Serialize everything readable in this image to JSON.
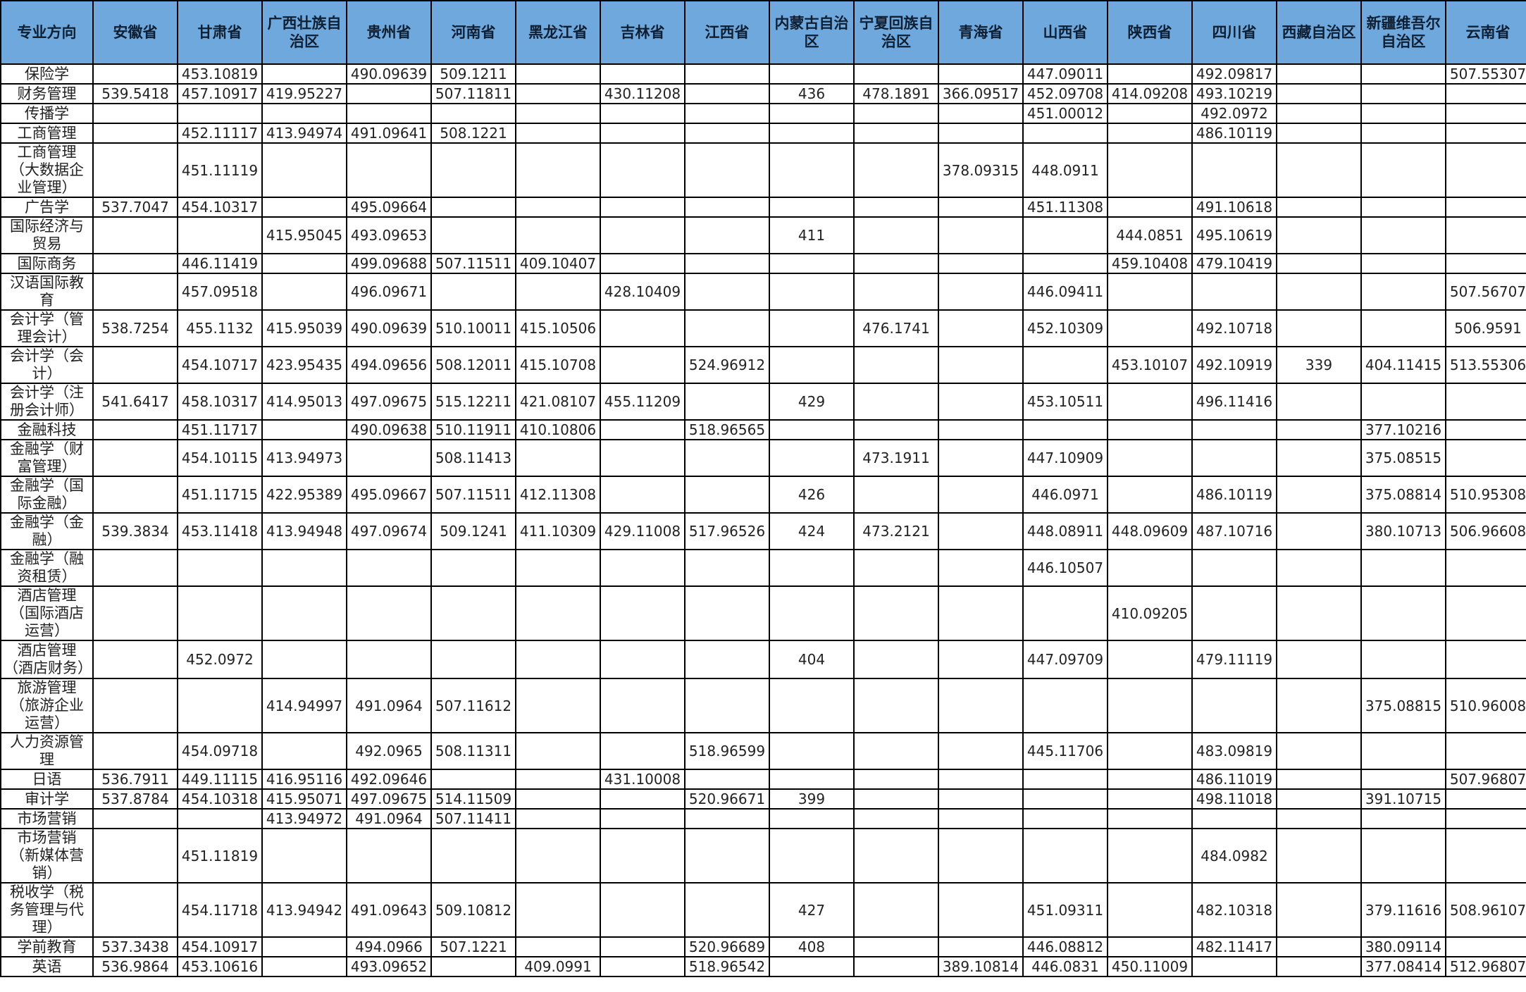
{
  "table": {
    "headers": [
      "专业方向",
      "安徽省",
      "甘肃省",
      "广西壮族自治区",
      "贵州省",
      "河南省",
      "黑龙江省",
      "吉林省",
      "江西省",
      "内蒙古自治区",
      "宁夏回族自治区",
      "青海省",
      "山西省",
      "陕西省",
      "四川省",
      "西藏自治区",
      "新疆维吾尔自治区",
      "云南省"
    ],
    "rows": [
      [
        "保险学",
        "",
        "453.10819",
        "",
        "490.09639",
        "509.1211",
        "",
        "",
        "",
        "",
        "",
        "",
        "447.09011",
        "",
        "492.09817",
        "",
        "",
        "507.55307"
      ],
      [
        "财务管理",
        "539.5418",
        "457.10917",
        "419.95227",
        "",
        "507.11811",
        "",
        "430.11208",
        "",
        "436",
        "478.1891",
        "366.09517",
        "452.09708",
        "414.09208",
        "493.10219",
        "",
        "",
        ""
      ],
      [
        "传播学",
        "",
        "",
        "",
        "",
        "",
        "",
        "",
        "",
        "",
        "",
        "",
        "451.00012",
        "",
        "492.0972",
        "",
        "",
        ""
      ],
      [
        "工商管理",
        "",
        "452.11117",
        "413.94974",
        "491.09641",
        "508.1221",
        "",
        "",
        "",
        "",
        "",
        "",
        "",
        "",
        "486.10119",
        "",
        "",
        ""
      ],
      [
        "工商管理（大数据企业管理）",
        "",
        "451.11119",
        "",
        "",
        "",
        "",
        "",
        "",
        "",
        "",
        "378.09315",
        "448.0911",
        "",
        "",
        "",
        "",
        ""
      ],
      [
        "广告学",
        "537.7047",
        "454.10317",
        "",
        "495.09664",
        "",
        "",
        "",
        "",
        "",
        "",
        "",
        "451.11308",
        "",
        "491.10618",
        "",
        "",
        ""
      ],
      [
        "国际经济与贸易",
        "",
        "",
        "415.95045",
        "493.09653",
        "",
        "",
        "",
        "",
        "411",
        "",
        "",
        "",
        "444.0851",
        "495.10619",
        "",
        "",
        ""
      ],
      [
        "国际商务",
        "",
        "446.11419",
        "",
        "499.09688",
        "507.11511",
        "409.10407",
        "",
        "",
        "",
        "",
        "",
        "",
        "459.10408",
        "479.10419",
        "",
        "",
        ""
      ],
      [
        "汉语国际教育",
        "",
        "457.09518",
        "",
        "496.09671",
        "",
        "",
        "428.10409",
        "",
        "",
        "",
        "",
        "446.09411",
        "",
        "",
        "",
        "",
        "507.56707"
      ],
      [
        "会计学（管理会计）",
        "538.7254",
        "455.1132",
        "415.95039",
        "490.09639",
        "510.10011",
        "415.10506",
        "",
        "",
        "",
        "476.1741",
        "",
        "452.10309",
        "",
        "492.10718",
        "",
        "",
        "506.9591"
      ],
      [
        "会计学（会计）",
        "",
        "454.10717",
        "423.95435",
        "494.09656",
        "508.12011",
        "415.10708",
        "",
        "524.96912",
        "",
        "",
        "",
        "",
        "453.10107",
        "492.10919",
        "339",
        "404.11415",
        "513.55306"
      ],
      [
        "会计学（注册会计师）",
        "541.6417",
        "458.10317",
        "414.95013",
        "497.09675",
        "515.12211",
        "421.08107",
        "455.11209",
        "",
        "429",
        "",
        "",
        "453.10511",
        "",
        "496.11416",
        "",
        "",
        ""
      ],
      [
        "金融科技",
        "",
        "451.11717",
        "",
        "490.09638",
        "510.11911",
        "410.10806",
        "",
        "518.96565",
        "",
        "",
        "",
        "",
        "",
        "",
        "",
        "377.10216",
        ""
      ],
      [
        "金融学（财富管理）",
        "",
        "454.10115",
        "413.94973",
        "",
        "508.11413",
        "",
        "",
        "",
        "",
        "473.1911",
        "",
        "447.10909",
        "",
        "",
        "",
        "375.08515",
        ""
      ],
      [
        "金融学（国际金融）",
        "",
        "451.11715",
        "422.95389",
        "495.09667",
        "507.11511",
        "412.11308",
        "",
        "",
        "426",
        "",
        "",
        "446.0971",
        "",
        "486.10119",
        "",
        "375.08814",
        "510.95308"
      ],
      [
        "金融学（金融）",
        "539.3834",
        "453.11418",
        "413.94948",
        "497.09674",
        "509.1241",
        "411.10309",
        "429.11008",
        "517.96526",
        "424",
        "473.2121",
        "",
        "448.08911",
        "448.09609",
        "487.10716",
        "",
        "380.10713",
        "506.96608"
      ],
      [
        "金融学（融资租赁）",
        "",
        "",
        "",
        "",
        "",
        "",
        "",
        "",
        "",
        "",
        "",
        "446.10507",
        "",
        "",
        "",
        "",
        ""
      ],
      [
        "酒店管理（国际酒店运营）",
        "",
        "",
        "",
        "",
        "",
        "",
        "",
        "",
        "",
        "",
        "",
        "",
        "410.09205",
        "",
        "",
        "",
        ""
      ],
      [
        "酒店管理（酒店财务）",
        "",
        "452.0972",
        "",
        "",
        "",
        "",
        "",
        "",
        "404",
        "",
        "",
        "447.09709",
        "",
        "479.11119",
        "",
        "",
        ""
      ],
      [
        "旅游管理（旅游企业运营）",
        "",
        "",
        "414.94997",
        "491.0964",
        "507.11612",
        "",
        "",
        "",
        "",
        "",
        "",
        "",
        "",
        "",
        "",
        "375.08815",
        "510.96008"
      ],
      [
        "人力资源管理",
        "",
        "454.09718",
        "",
        "492.0965",
        "508.11311",
        "",
        "",
        "518.96599",
        "",
        "",
        "",
        "445.11706",
        "",
        "483.09819",
        "",
        "",
        ""
      ],
      [
        "日语",
        "536.7911",
        "449.11115",
        "416.95116",
        "492.09646",
        "",
        "",
        "431.10008",
        "",
        "",
        "",
        "",
        "",
        "",
        "486.11019",
        "",
        "",
        "507.96807"
      ],
      [
        "审计学",
        "537.8784",
        "454.10318",
        "415.95071",
        "497.09675",
        "514.11509",
        "",
        "",
        "520.96671",
        "399",
        "",
        "",
        "",
        "",
        "498.11018",
        "",
        "391.10715",
        ""
      ],
      [
        "市场营销",
        "",
        "",
        "413.94972",
        "491.0964",
        "507.11411",
        "",
        "",
        "",
        "",
        "",
        "",
        "",
        "",
        "",
        "",
        "",
        ""
      ],
      [
        "市场营销（新媒体营销）",
        "",
        "451.11819",
        "",
        "",
        "",
        "",
        "",
        "",
        "",
        "",
        "",
        "",
        "",
        "484.0982",
        "",
        "",
        ""
      ],
      [
        "税收学（税务管理与代理）",
        "",
        "454.11718",
        "413.94942",
        "491.09643",
        "509.10812",
        "",
        "",
        "",
        "427",
        "",
        "",
        "451.09311",
        "",
        "482.10318",
        "",
        "379.11616",
        "508.96107"
      ],
      [
        "学前教育",
        "537.3438",
        "454.10917",
        "",
        "494.0966",
        "507.1221",
        "",
        "",
        "520.96689",
        "408",
        "",
        "",
        "446.08812",
        "",
        "482.11417",
        "",
        "380.09114",
        ""
      ],
      [
        "英语",
        "536.9864",
        "453.10616",
        "",
        "493.09652",
        "",
        "409.0991",
        "",
        "518.96542",
        "",
        "",
        "389.10814",
        "446.0831",
        "450.11009",
        "",
        "",
        "377.08414",
        "512.96807"
      ]
    ]
  }
}
